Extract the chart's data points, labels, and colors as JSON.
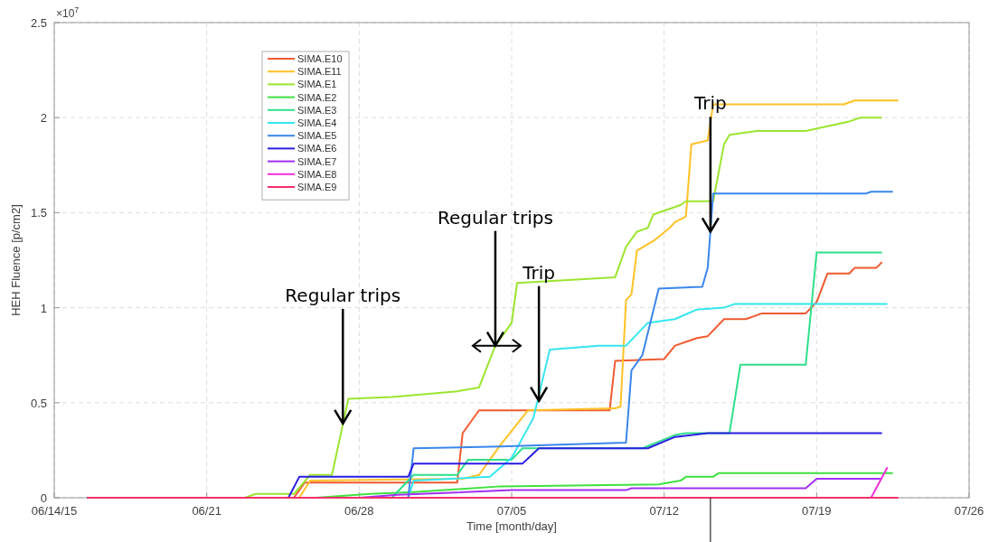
{
  "chart_data": {
    "type": "line",
    "xlabel": "Time [month/day]",
    "ylabel": "HEH Fluence [p/cm2]",
    "xlim": [
      "--06-14",
      "--07-26"
    ],
    "xticks": [
      {
        "value": "--06-14",
        "label": "06/14/15"
      },
      {
        "value": "--06-21",
        "label": "06/21"
      },
      {
        "value": "--06-28",
        "label": "06/28"
      },
      {
        "value": "--07-05",
        "label": "07/05"
      },
      {
        "value": "--07-12",
        "label": "07/12"
      },
      {
        "value": "--07-19",
        "label": "07/19"
      },
      {
        "value": "--07-26",
        "label": "07/26"
      }
    ],
    "ylim": [
      0,
      2.5
    ],
    "yticks": [
      0,
      0.5,
      1,
      1.5,
      2,
      2.5
    ],
    "grid": true,
    "legend": "top left",
    "line_style": "solid",
    "annotations": [
      "×10$^{7}$",
      {
        "text": "Regular trips",
        "x": "--06-27T06:00",
        "y": 0.39
      },
      {
        "text": "Regular trips",
        "x": "--07-04T06:00",
        "y": 0.8
      },
      {
        "text": "Trip",
        "x": "--07-06T06:00",
        "y": 0.51
      },
      {
        "text": "Trip",
        "x": "--07-14T03:00",
        "y": 1.4
      }
    ],
    "series": [
      {
        "name": "SIMA.E10",
        "color": "#f05a30",
        "x": [
          "--06-15T12:00",
          "--06-25",
          "--06-25T12:00",
          "--07-02T12:00",
          "--07-02T18:00",
          "--07-03T12:00",
          "--07-09T12:00",
          "--07-09T18:00",
          "--07-12",
          "--07-12T12:00",
          "--07-13T12:00",
          "--07-14",
          "--07-14T18:00",
          "--07-15T18:00",
          "--07-16T12:00",
          "--07-18T12:00",
          "--07-19",
          "--07-19T12:00",
          "--07-20T12:00",
          "--07-20T18:00",
          "--07-21T18:00",
          "--07-22"
        ],
        "values": [
          0,
          0,
          0.08,
          0.08,
          0.34,
          0.46,
          0.46,
          0.72,
          0.73,
          0.8,
          0.84,
          0.85,
          0.94,
          0.94,
          0.97,
          0.97,
          1.03,
          1.18,
          1.18,
          1.21,
          1.21,
          1.24
        ]
      },
      {
        "name": "SIMA.E11",
        "color": "#ffc125",
        "x": [
          "--06-15T12:00",
          "--06-25T06:00",
          "--06-25T18:00",
          "--07-02T18:00",
          "--07-03T12:00",
          "--07-04T12:00",
          "--07-05T18:00",
          "--07-09T18:00",
          "--07-10",
          "--07-10T06:00",
          "--07-10T12:00",
          "--07-10T18:00",
          "--07-11T12:00",
          "--07-12T06:00",
          "--07-12T12:00",
          "--07-13",
          "--07-13T06:00",
          "--07-14",
          "--07-14T06:00",
          "--07-20T06:00",
          "--07-20T18:00",
          "--07-22T18:00"
        ],
        "values": [
          0,
          0,
          0.09,
          0.1,
          0.12,
          0.28,
          0.46,
          0.47,
          0.48,
          1.04,
          1.07,
          1.3,
          1.35,
          1.42,
          1.45,
          1.48,
          1.86,
          1.88,
          2.07,
          2.07,
          2.09,
          2.09
        ]
      },
      {
        "name": "SIMA.E1",
        "color": "#9be52e",
        "x": [
          "--06-15T12:00",
          "--06-22T18:00",
          "--06-23T06:00",
          "--06-25",
          "--06-25T18:00",
          "--06-26T18:00",
          "--06-27T12:00",
          "--06-29T12:00",
          "--07-02T12:00",
          "--07-03T12:00",
          "--07-04T06:00",
          "--07-05",
          "--07-05T06:00",
          "--07-09T18:00",
          "--07-10T06:00",
          "--07-10T18:00",
          "--07-11T06:00",
          "--07-11T12:00",
          "--07-12T18:00",
          "--07-13",
          "--07-14T06:00",
          "--07-14T18:00",
          "--07-15",
          "--07-16T06:00",
          "--07-18T12:00",
          "--07-20T12:00",
          "--07-21",
          "--07-22"
        ],
        "values": [
          0,
          0,
          0.02,
          0.02,
          0.12,
          0.12,
          0.52,
          0.53,
          0.56,
          0.58,
          0.8,
          0.92,
          1.13,
          1.16,
          1.32,
          1.4,
          1.42,
          1.49,
          1.54,
          1.56,
          1.56,
          1.86,
          1.91,
          1.93,
          1.93,
          1.98,
          2.0,
          2.0
        ]
      },
      {
        "name": "SIMA.E2",
        "color": "#3fe03f",
        "x": [
          "--06-15T12:00",
          "--06-26",
          "--06-28T12:00",
          "--06-30T12:00",
          "--07-04T12:00",
          "--07-11T18:00",
          "--07-12T18:00",
          "--07-13",
          "--07-14T06:00",
          "--07-14T12:00",
          "--07-22T12:00"
        ],
        "values": [
          0,
          0,
          0.02,
          0.03,
          0.06,
          0.07,
          0.09,
          0.11,
          0.11,
          0.13,
          0.13
        ]
      },
      {
        "name": "SIMA.E3",
        "color": "#2fe08a",
        "x": [
          "--06-15T12:00",
          "--06-29T12:00",
          "--06-30T12:00",
          "--07-02T12:00",
          "--07-03",
          "--07-05",
          "--07-05T12:00",
          "--07-11",
          "--07-12T12:00",
          "--07-13",
          "--07-15",
          "--07-15T12:00",
          "--07-18T12:00",
          "--07-19",
          "--07-22"
        ],
        "values": [
          0,
          0,
          0.12,
          0.12,
          0.2,
          0.2,
          0.26,
          0.26,
          0.33,
          0.34,
          0.34,
          0.7,
          0.7,
          1.29,
          1.29
        ]
      },
      {
        "name": "SIMA.E4",
        "color": "#34e6f0",
        "x": [
          "--06-15T12:00",
          "--06-30T06:00",
          "--06-30T12:00",
          "--07-04",
          "--07-05",
          "--07-06",
          "--07-06T18:00",
          "--07-09",
          "--07-10T06:00",
          "--07-11T06:00",
          "--07-12T12:00",
          "--07-13T12:00",
          "--07-14T18:00",
          "--07-15T06:00",
          "--07-22T06:00"
        ],
        "values": [
          0,
          0,
          0.09,
          0.11,
          0.21,
          0.42,
          0.78,
          0.8,
          0.8,
          0.92,
          0.94,
          0.99,
          1.0,
          1.02,
          1.02
        ]
      },
      {
        "name": "SIMA.E5",
        "color": "#3a86ec",
        "x": [
          "--06-15T12:00",
          "--06-30T06:00",
          "--06-30T12:00",
          "--07-04T12:00",
          "--07-10T06:00",
          "--07-10T12:00",
          "--07-11",
          "--07-11T18:00",
          "--07-13T18:00",
          "--07-14",
          "--07-14T06:00",
          "--07-21T06:00",
          "--07-21T12:00",
          "--07-22T12:00"
        ],
        "values": [
          0,
          0,
          0.26,
          0.27,
          0.29,
          0.67,
          0.75,
          1.1,
          1.11,
          1.21,
          1.6,
          1.6,
          1.61,
          1.61
        ]
      },
      {
        "name": "SIMA.E6",
        "color": "#2a1ee0",
        "x": [
          "--06-15T12:00",
          "--06-24T18:00",
          "--06-25T06:00",
          "--06-30T06:00",
          "--06-30T12:00",
          "--07-05T12:00",
          "--07-06T06:00",
          "--07-11T06:00",
          "--07-12T12:00",
          "--07-14",
          "--07-22"
        ],
        "values": [
          0,
          0,
          0.11,
          0.11,
          0.18,
          0.18,
          0.26,
          0.26,
          0.32,
          0.34,
          0.34
        ]
      },
      {
        "name": "SIMA.E7",
        "color": "#a030f0",
        "x": [
          "--06-15T12:00",
          "--06-28",
          "--06-29T18:00",
          "--07-05",
          "--07-10T06:00",
          "--07-10T12:00",
          "--07-18T12:00",
          "--07-19",
          "--07-22"
        ],
        "values": [
          0,
          0,
          0.015,
          0.04,
          0.04,
          0.05,
          0.05,
          0.1,
          0.1
        ]
      },
      {
        "name": "SIMA.E8",
        "color": "#f030d8",
        "x": [
          "--07-21T12:00",
          "--07-22T06:00"
        ],
        "values": [
          0,
          0.16
        ]
      },
      {
        "name": "SIMA.E9",
        "color": "#f5306a",
        "x": [
          "--06-15T12:00",
          "--07-22T18:00"
        ],
        "values": [
          0,
          0
        ]
      }
    ]
  }
}
